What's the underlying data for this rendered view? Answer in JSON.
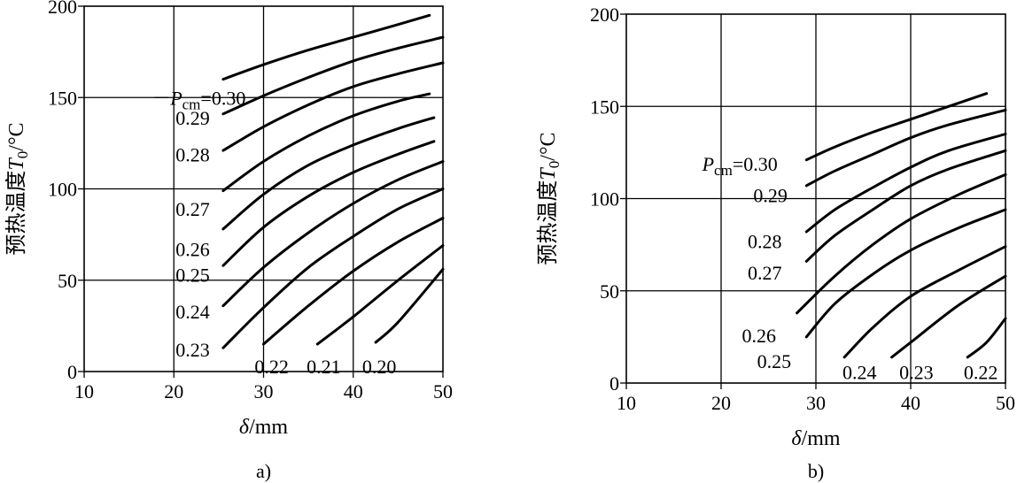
{
  "chart_data": [
    {
      "type": "line",
      "panel_label": "a)",
      "xlabel_symbol": "δ",
      "xlabel_unit": "/mm",
      "ylabel_text": "预热温度",
      "ylabel_symbol": "T",
      "ylabel_sub": "0",
      "ylabel_unit": "/°C",
      "xlim": [
        10,
        50
      ],
      "ylim": [
        0,
        200
      ],
      "xticks": [
        "10",
        "20",
        "30",
        "40",
        "50"
      ],
      "yticks": [
        "0",
        "50",
        "100",
        "150",
        "200"
      ],
      "grid": true,
      "series": [
        {
          "name": "Pcm=0.30",
          "x": [
            25.5,
            30,
            35,
            40,
            45,
            48.5
          ],
          "y": [
            160,
            168,
            176,
            183,
            190,
            195
          ]
        },
        {
          "name": "0.29",
          "x": [
            25.5,
            30,
            35,
            40,
            45,
            50
          ],
          "y": [
            141,
            151,
            161,
            170,
            177,
            183
          ]
        },
        {
          "name": "0.28",
          "x": [
            25.5,
            30,
            35,
            40,
            45,
            50
          ],
          "y": [
            121,
            134,
            146,
            156,
            163,
            169
          ]
        },
        {
          "name": "0.27",
          "x": [
            25.5,
            30,
            35,
            40,
            45,
            48.5
          ],
          "y": [
            99,
            115,
            129,
            140,
            148,
            152
          ]
        },
        {
          "name": "0.26",
          "x": [
            25.5,
            30,
            35,
            40,
            45,
            49
          ],
          "y": [
            78,
            97,
            113,
            124,
            133,
            139
          ]
        },
        {
          "name": "0.25",
          "x": [
            25.5,
            30,
            35,
            40,
            45,
            49
          ],
          "y": [
            58,
            79,
            96,
            109,
            119,
            126
          ]
        },
        {
          "name": "0.24",
          "x": [
            25.5,
            30,
            35,
            40,
            45,
            50
          ],
          "y": [
            36,
            57,
            76,
            92,
            105,
            115
          ]
        },
        {
          "name": "0.23",
          "x": [
            25.5,
            30,
            35,
            40,
            45,
            50
          ],
          "y": [
            13,
            35,
            57,
            74,
            89,
            100
          ]
        },
        {
          "name": "0.22",
          "x": [
            30,
            35,
            40,
            45,
            50
          ],
          "y": [
            15,
            36,
            55,
            71,
            84
          ]
        },
        {
          "name": "0.21",
          "x": [
            36,
            40,
            45,
            50
          ],
          "y": [
            15,
            30,
            50,
            69
          ]
        },
        {
          "name": "0.20",
          "x": [
            42.5,
            45,
            50
          ],
          "y": [
            16,
            27,
            56
          ]
        }
      ],
      "label_anchors": [
        {
          "text_p": "P",
          "text_sub": "cm",
          "text_rest": "=0.30",
          "x": 19.6,
          "y": 150,
          "leader_to": [
            25,
            150
          ]
        },
        {
          "text": "0.29",
          "x": 20.2,
          "y": 139
        },
        {
          "text": "0.28",
          "x": 20.2,
          "y": 119
        },
        {
          "text": "0.27",
          "x": 20.2,
          "y": 89
        },
        {
          "text": "0.26",
          "x": 20.2,
          "y": 67
        },
        {
          "text": "0.25",
          "x": 20.2,
          "y": 53
        },
        {
          "text": "0.24",
          "x": 20.2,
          "y": 33
        },
        {
          "text": "0.23",
          "x": 20.2,
          "y": 12
        },
        {
          "text": "0.22",
          "x": 29.0,
          "y": 3
        },
        {
          "text": "0.21",
          "x": 34.8,
          "y": 3
        },
        {
          "text": "0.20",
          "x": 41.0,
          "y": 3
        }
      ]
    },
    {
      "type": "line",
      "panel_label": "b)",
      "xlabel_symbol": "δ",
      "xlabel_unit": "/mm",
      "ylabel_text": "预热温度",
      "ylabel_symbol": "T",
      "ylabel_sub": "0",
      "ylabel_unit": "/°C",
      "xlim": [
        10,
        50
      ],
      "ylim": [
        0,
        200
      ],
      "xticks": [
        "10",
        "20",
        "30",
        "40",
        "50"
      ],
      "yticks": [
        "0",
        "50",
        "100",
        "150",
        "200"
      ],
      "grid": true,
      "series": [
        {
          "name": "Pcm=0.30",
          "x": [
            29,
            32,
            36,
            40,
            44,
            48
          ],
          "y": [
            121,
            128,
            136,
            143,
            150,
            157
          ]
        },
        {
          "name": "0.29",
          "x": [
            29,
            32,
            36,
            40,
            44,
            50
          ],
          "y": [
            107,
            115,
            124,
            133,
            140,
            148
          ]
        },
        {
          "name": "0.28",
          "x": [
            29,
            32,
            36,
            40,
            44,
            50
          ],
          "y": [
            82,
            94,
            106,
            117,
            126,
            135
          ]
        },
        {
          "name": "0.27",
          "x": [
            29,
            32,
            36,
            40,
            44,
            50
          ],
          "y": [
            66,
            80,
            94,
            107,
            116,
            126
          ]
        },
        {
          "name": "0.26",
          "x": [
            28,
            32,
            36,
            40,
            45,
            50
          ],
          "y": [
            38,
            58,
            75,
            89,
            102,
            113
          ]
        },
        {
          "name": "0.25",
          "x": [
            29,
            32,
            36,
            40,
            45,
            50
          ],
          "y": [
            25,
            43,
            59,
            72,
            84,
            94
          ]
        },
        {
          "name": "0.24",
          "x": [
            33,
            36,
            40,
            45,
            50
          ],
          "y": [
            14,
            30,
            47,
            61,
            74
          ]
        },
        {
          "name": "0.23",
          "x": [
            38,
            40,
            45,
            50
          ],
          "y": [
            14,
            22,
            42,
            58
          ]
        },
        {
          "name": "0.22",
          "x": [
            46,
            48,
            50
          ],
          "y": [
            14,
            22,
            35
          ]
        }
      ],
      "label_anchors": [
        {
          "text_p": "P",
          "text_sub": "cm",
          "text_rest": "=0.30",
          "x": 18.0,
          "y": 119,
          "leader_to": [
            29,
            121
          ]
        },
        {
          "text": "0.29",
          "x": 23.4,
          "y": 102
        },
        {
          "text": "0.28",
          "x": 22.8,
          "y": 77
        },
        {
          "text": "0.27",
          "x": 22.8,
          "y": 60
        },
        {
          "text": "0.26",
          "x": 22.2,
          "y": 26
        },
        {
          "text": "0.25",
          "x": 23.8,
          "y": 12
        },
        {
          "text": "0.24",
          "x": 32.8,
          "y": 6
        },
        {
          "text": "0.23",
          "x": 38.8,
          "y": 6
        },
        {
          "text": "0.22",
          "x": 45.6,
          "y": 6
        }
      ]
    }
  ]
}
